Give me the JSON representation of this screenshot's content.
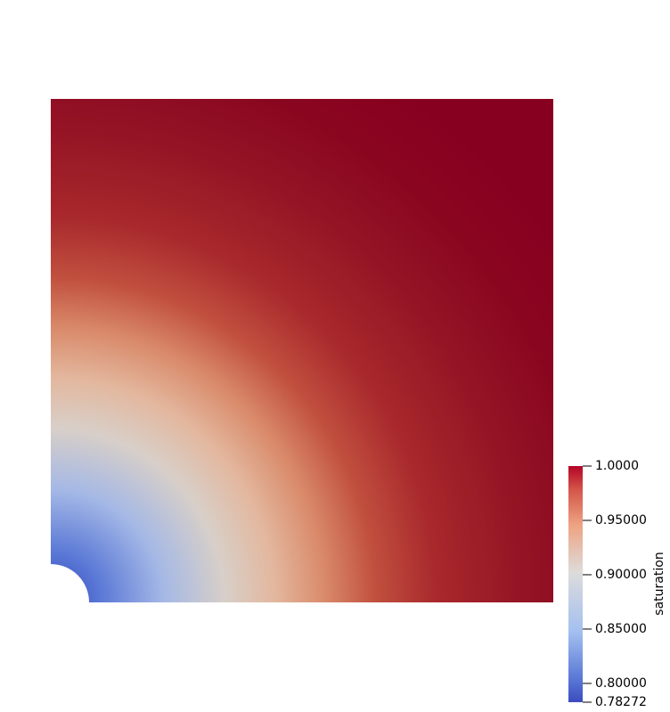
{
  "colorbar": {
    "title": "saturation",
    "colormap": "cool-to-warm",
    "range": [
      0.78272,
      1.0
    ],
    "ticks": [
      {
        "value": 1.0,
        "label": "1.0000"
      },
      {
        "value": 0.95,
        "label": "0.95000"
      },
      {
        "value": 0.9,
        "label": "0.90000"
      },
      {
        "value": 0.85,
        "label": "0.85000"
      },
      {
        "value": 0.8,
        "label": "0.80000"
      },
      {
        "value": 0.78272,
        "label": "0.78272"
      }
    ],
    "colors": {
      "low": "#3b4cc0",
      "mid": "#dddcdb",
      "high": "#b40426"
    }
  },
  "field": {
    "description_geometry": "quarter-plate-with-hole",
    "background_color": "#8a0020"
  }
}
